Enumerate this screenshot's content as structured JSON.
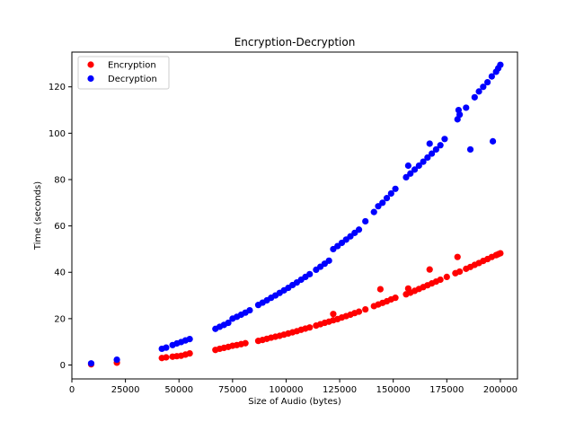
{
  "chart_data": {
    "type": "scatter",
    "title": "Encryption-Decryption",
    "xlabel": "Size of Audio (bytes)",
    "ylabel": "Time (seconds)",
    "xlim": [
      0,
      208000
    ],
    "ylim": [
      -6,
      135
    ],
    "xticks": [
      0,
      25000,
      50000,
      75000,
      100000,
      125000,
      150000,
      175000,
      200000
    ],
    "yticks": [
      0,
      20,
      40,
      60,
      80,
      100,
      120
    ],
    "grid": false,
    "legend_position": "upper-left",
    "series": [
      {
        "name": "Encryption",
        "color": "#ff0000",
        "points": [
          [
            9000,
            0.3
          ],
          [
            21000,
            1.0
          ],
          [
            42000,
            3.0
          ],
          [
            44000,
            3.3
          ],
          [
            47000,
            3.6
          ],
          [
            49000,
            3.8
          ],
          [
            51000,
            4.0
          ],
          [
            53000,
            4.5
          ],
          [
            55000,
            5.0
          ],
          [
            67000,
            6.5
          ],
          [
            69000,
            7.0
          ],
          [
            71000,
            7.4
          ],
          [
            73000,
            7.8
          ],
          [
            75000,
            8.3
          ],
          [
            77000,
            8.6
          ],
          [
            79000,
            9.0
          ],
          [
            81000,
            9.4
          ],
          [
            87000,
            10.4
          ],
          [
            89000,
            10.8
          ],
          [
            91000,
            11.3
          ],
          [
            93000,
            11.8
          ],
          [
            95000,
            12.2
          ],
          [
            97000,
            12.6
          ],
          [
            99000,
            13.1
          ],
          [
            101000,
            13.6
          ],
          [
            103000,
            14.1
          ],
          [
            105000,
            14.6
          ],
          [
            107000,
            15.2
          ],
          [
            109000,
            15.7
          ],
          [
            111000,
            16.2
          ],
          [
            114000,
            17.0
          ],
          [
            116000,
            17.6
          ],
          [
            118000,
            18.2
          ],
          [
            120000,
            18.7
          ],
          [
            122000,
            19.3
          ],
          [
            124000,
            19.8
          ],
          [
            126000,
            20.5
          ],
          [
            128000,
            21.1
          ],
          [
            130000,
            21.7
          ],
          [
            132000,
            22.4
          ],
          [
            134000,
            23.0
          ],
          [
            137000,
            24.0
          ],
          [
            141000,
            25.4
          ],
          [
            143000,
            26.1
          ],
          [
            145000,
            26.8
          ],
          [
            147000,
            27.5
          ],
          [
            149000,
            28.3
          ],
          [
            151000,
            29.0
          ],
          [
            122000,
            22.0
          ],
          [
            144000,
            32.7
          ],
          [
            156000,
            30.5
          ],
          [
            158000,
            31.2
          ],
          [
            160000,
            32.0
          ],
          [
            162000,
            32.8
          ],
          [
            164000,
            33.6
          ],
          [
            166000,
            34.4
          ],
          [
            168000,
            35.2
          ],
          [
            170000,
            36.0
          ],
          [
            172000,
            36.8
          ],
          [
            175000,
            38.0
          ],
          [
            179000,
            39.6
          ],
          [
            157000,
            33.0
          ],
          [
            167000,
            41.2
          ],
          [
            180000,
            46.6
          ],
          [
            181000,
            40.3
          ],
          [
            184000,
            41.5
          ],
          [
            186000,
            42.3
          ],
          [
            188000,
            43.2
          ],
          [
            190000,
            44.0
          ],
          [
            192000,
            44.9
          ],
          [
            194000,
            45.7
          ],
          [
            196000,
            46.6
          ],
          [
            198000,
            47.4
          ],
          [
            199000,
            47.8
          ],
          [
            200000,
            48.2
          ]
        ]
      },
      {
        "name": "Decryption",
        "color": "#0000ff",
        "points": [
          [
            9000,
            0.7
          ],
          [
            21000,
            2.3
          ],
          [
            42000,
            7.0
          ],
          [
            44000,
            7.5
          ],
          [
            47000,
            8.6
          ],
          [
            49000,
            9.3
          ],
          [
            51000,
            9.9
          ],
          [
            53000,
            10.6
          ],
          [
            55000,
            11.2
          ],
          [
            67000,
            15.6
          ],
          [
            69000,
            16.5
          ],
          [
            71000,
            17.3
          ],
          [
            73000,
            18.2
          ],
          [
            75000,
            20.0
          ],
          [
            77000,
            20.8
          ],
          [
            79000,
            21.7
          ],
          [
            81000,
            22.6
          ],
          [
            83000,
            23.6
          ],
          [
            87000,
            25.9
          ],
          [
            89000,
            26.9
          ],
          [
            91000,
            27.9
          ],
          [
            93000,
            29.0
          ],
          [
            95000,
            30.0
          ],
          [
            97000,
            31.1
          ],
          [
            99000,
            32.2
          ],
          [
            101000,
            33.3
          ],
          [
            103000,
            34.5
          ],
          [
            105000,
            35.6
          ],
          [
            107000,
            36.8
          ],
          [
            109000,
            38.0
          ],
          [
            111000,
            39.2
          ],
          [
            114000,
            41.1
          ],
          [
            116000,
            42.4
          ],
          [
            118000,
            43.7
          ],
          [
            120000,
            45.0
          ],
          [
            122000,
            50.0
          ],
          [
            124000,
            51.3
          ],
          [
            126000,
            52.7
          ],
          [
            128000,
            54.1
          ],
          [
            130000,
            55.5
          ],
          [
            132000,
            57.0
          ],
          [
            134000,
            58.4
          ],
          [
            137000,
            62.0
          ],
          [
            141000,
            66.0
          ],
          [
            143000,
            68.5
          ],
          [
            145000,
            70.0
          ],
          [
            147000,
            72.0
          ],
          [
            149000,
            74.0
          ],
          [
            151000,
            76.0
          ],
          [
            156000,
            81.0
          ],
          [
            157000,
            86.0
          ],
          [
            158000,
            82.6
          ],
          [
            160000,
            84.3
          ],
          [
            162000,
            86.0
          ],
          [
            164000,
            87.7
          ],
          [
            166000,
            89.5
          ],
          [
            167000,
            95.5
          ],
          [
            168000,
            91.2
          ],
          [
            170000,
            93.0
          ],
          [
            172000,
            94.8
          ],
          [
            174000,
            97.5
          ],
          [
            180000,
            106.0
          ],
          [
            181000,
            108.0
          ],
          [
            180500,
            110.0
          ],
          [
            184000,
            111.0
          ],
          [
            186000,
            93.0
          ],
          [
            188000,
            115.5
          ],
          [
            190000,
            118.0
          ],
          [
            192000,
            120.0
          ],
          [
            194000,
            122.0
          ],
          [
            196000,
            124.5
          ],
          [
            198000,
            126.5
          ],
          [
            199000,
            128.0
          ],
          [
            200000,
            129.5
          ],
          [
            196500,
            96.5
          ]
        ]
      }
    ]
  }
}
